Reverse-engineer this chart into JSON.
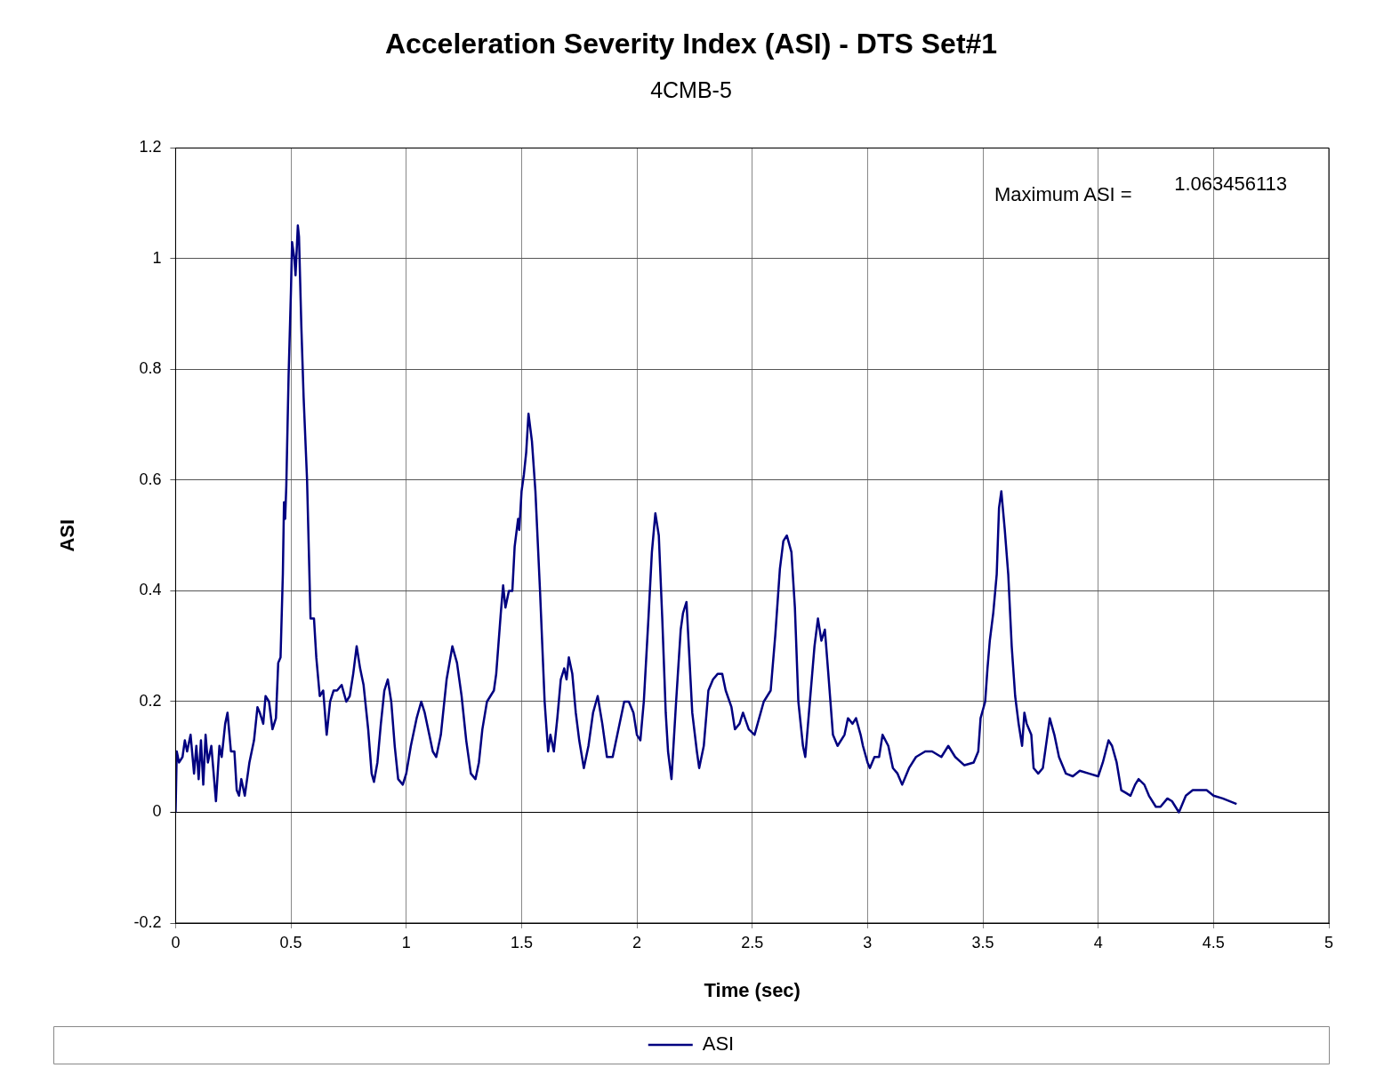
{
  "chart_data": {
    "type": "line",
    "title": "Acceleration Severity Index (ASI) - DTS Set#1",
    "subtitle": "4CMB-5",
    "xlabel": "Time (sec)",
    "ylabel": "ASI",
    "xlim": [
      0,
      5
    ],
    "xticks": [
      0,
      0.5,
      1,
      1.5,
      2,
      2.5,
      3,
      3.5,
      4,
      4.5,
      5
    ],
    "ylim": [
      -0.2,
      1.2
    ],
    "yticks": [
      -0.2,
      0,
      0.2,
      0.4,
      0.6,
      0.8,
      1,
      1.2
    ],
    "grid": true,
    "legend": "bottom",
    "marker": "none",
    "line_style": "solid",
    "annotations": [
      "Maximum ASI =",
      "1.063456113"
    ],
    "series": [
      {
        "name": "ASI",
        "color": "#000080",
        "x": [
          0,
          0.005,
          0.015,
          0.03,
          0.04,
          0.05,
          0.065,
          0.08,
          0.09,
          0.1,
          0.11,
          0.12,
          0.13,
          0.14,
          0.155,
          0.165,
          0.175,
          0.19,
          0.2,
          0.215,
          0.225,
          0.24,
          0.255,
          0.265,
          0.275,
          0.285,
          0.3,
          0.32,
          0.34,
          0.355,
          0.365,
          0.38,
          0.39,
          0.405,
          0.42,
          0.435,
          0.445,
          0.455,
          0.465,
          0.47,
          0.475,
          0.48,
          0.49,
          0.5,
          0.505,
          0.515,
          0.52,
          0.53,
          0.535,
          0.545,
          0.555,
          0.57,
          0.585,
          0.6,
          0.61,
          0.625,
          0.64,
          0.655,
          0.67,
          0.685,
          0.7,
          0.72,
          0.74,
          0.755,
          0.77,
          0.785,
          0.8,
          0.815,
          0.835,
          0.85,
          0.86,
          0.875,
          0.89,
          0.905,
          0.92,
          0.935,
          0.95,
          0.965,
          0.985,
          1.0,
          1.02,
          1.045,
          1.065,
          1.08,
          1.1,
          1.115,
          1.13,
          1.15,
          1.175,
          1.2,
          1.22,
          1.24,
          1.26,
          1.28,
          1.3,
          1.315,
          1.33,
          1.35,
          1.38,
          1.39,
          1.41,
          1.42,
          1.43,
          1.445,
          1.46,
          1.47,
          1.485,
          1.49,
          1.5,
          1.51,
          1.52,
          1.53,
          1.545,
          1.56,
          1.58,
          1.6,
          1.615,
          1.625,
          1.64,
          1.655,
          1.67,
          1.685,
          1.695,
          1.705,
          1.72,
          1.735,
          1.75,
          1.77,
          1.79,
          1.81,
          1.83,
          1.85,
          1.87,
          1.895,
          1.92,
          1.945,
          1.965,
          1.985,
          2.0,
          2.015,
          2.03,
          2.05,
          2.065,
          2.08,
          2.095,
          2.11,
          2.125,
          2.135,
          2.15,
          2.17,
          2.19,
          2.2,
          2.215,
          2.225,
          2.24,
          2.26,
          2.27,
          2.29,
          2.31,
          2.33,
          2.35,
          2.37,
          2.385,
          2.41,
          2.425,
          2.445,
          2.46,
          2.485,
          2.51,
          2.53,
          2.55,
          2.58,
          2.6,
          2.62,
          2.635,
          2.65,
          2.67,
          2.685,
          2.7,
          2.72,
          2.73,
          2.75,
          2.77,
          2.785,
          2.8,
          2.815,
          2.83,
          2.85,
          2.87,
          2.9,
          2.915,
          2.935,
          2.95,
          2.97,
          2.98,
          3.0,
          3.01,
          3.03,
          3.05,
          3.065,
          3.09,
          3.11,
          3.13,
          3.15,
          3.18,
          3.21,
          3.25,
          3.28,
          3.32,
          3.35,
          3.38,
          3.42,
          3.46,
          3.48,
          3.49,
          3.51,
          3.52,
          3.53,
          3.545,
          3.56,
          3.57,
          3.58,
          3.595,
          3.61,
          3.625,
          3.64,
          3.655,
          3.67,
          3.68,
          3.69,
          3.71,
          3.72,
          3.74,
          3.76,
          3.78,
          3.79,
          3.81,
          3.83,
          3.86,
          3.89,
          3.92,
          3.96,
          4.0,
          4.02,
          4.045,
          4.06,
          4.08,
          4.1,
          4.12,
          4.14,
          4.16,
          4.175,
          4.2,
          4.22,
          4.25,
          4.27,
          4.3,
          4.32,
          4.35,
          4.38,
          4.41,
          4.44,
          4.47,
          4.5,
          4.54,
          4.6
        ],
        "values": [
          0,
          0.11,
          0.09,
          0.1,
          0.13,
          0.11,
          0.14,
          0.07,
          0.12,
          0.06,
          0.13,
          0.05,
          0.14,
          0.09,
          0.12,
          0.07,
          0.02,
          0.12,
          0.1,
          0.16,
          0.18,
          0.11,
          0.11,
          0.04,
          0.03,
          0.06,
          0.03,
          0.09,
          0.13,
          0.19,
          0.18,
          0.16,
          0.21,
          0.2,
          0.15,
          0.17,
          0.27,
          0.28,
          0.43,
          0.56,
          0.53,
          0.59,
          0.79,
          0.94,
          1.03,
          1.0,
          0.97,
          1.06,
          1.04,
          0.88,
          0.75,
          0.6,
          0.35,
          0.35,
          0.28,
          0.21,
          0.22,
          0.14,
          0.2,
          0.22,
          0.22,
          0.23,
          0.2,
          0.21,
          0.25,
          0.3,
          0.26,
          0.23,
          0.15,
          0.07,
          0.055,
          0.09,
          0.16,
          0.22,
          0.24,
          0.2,
          0.12,
          0.06,
          0.05,
          0.07,
          0.12,
          0.17,
          0.2,
          0.18,
          0.14,
          0.11,
          0.1,
          0.14,
          0.24,
          0.3,
          0.27,
          0.21,
          0.13,
          0.07,
          0.06,
          0.09,
          0.15,
          0.2,
          0.22,
          0.25,
          0.36,
          0.41,
          0.37,
          0.4,
          0.4,
          0.48,
          0.53,
          0.51,
          0.58,
          0.61,
          0.65,
          0.72,
          0.67,
          0.58,
          0.4,
          0.2,
          0.11,
          0.14,
          0.11,
          0.17,
          0.24,
          0.26,
          0.24,
          0.28,
          0.25,
          0.18,
          0.13,
          0.08,
          0.12,
          0.18,
          0.21,
          0.16,
          0.1,
          0.1,
          0.15,
          0.2,
          0.2,
          0.18,
          0.14,
          0.13,
          0.2,
          0.35,
          0.47,
          0.54,
          0.5,
          0.35,
          0.18,
          0.11,
          0.06,
          0.2,
          0.33,
          0.36,
          0.38,
          0.3,
          0.18,
          0.11,
          0.08,
          0.12,
          0.22,
          0.24,
          0.25,
          0.25,
          0.22,
          0.19,
          0.15,
          0.16,
          0.18,
          0.15,
          0.14,
          0.17,
          0.2,
          0.22,
          0.32,
          0.44,
          0.49,
          0.5,
          0.47,
          0.37,
          0.2,
          0.12,
          0.1,
          0.2,
          0.3,
          0.35,
          0.31,
          0.33,
          0.25,
          0.14,
          0.12,
          0.14,
          0.17,
          0.16,
          0.17,
          0.14,
          0.12,
          0.09,
          0.08,
          0.1,
          0.1,
          0.14,
          0.12,
          0.08,
          0.07,
          0.05,
          0.08,
          0.1,
          0.11,
          0.11,
          0.1,
          0.12,
          0.1,
          0.085,
          0.09,
          0.11,
          0.17,
          0.2,
          0.26,
          0.31,
          0.36,
          0.43,
          0.55,
          0.58,
          0.51,
          0.43,
          0.3,
          0.21,
          0.16,
          0.12,
          0.18,
          0.16,
          0.14,
          0.08,
          0.07,
          0.08,
          0.14,
          0.17,
          0.14,
          0.1,
          0.07,
          0.065,
          0.075,
          0.07,
          0.065,
          0.09,
          0.13,
          0.12,
          0.09,
          0.04,
          0.035,
          0.03,
          0.05,
          0.06,
          0.05,
          0.03,
          0.01,
          0.01,
          0.025,
          0.02,
          0,
          0.03,
          0.04,
          0.04,
          0.04,
          0.03,
          0.025,
          0.015
        ]
      }
    ]
  }
}
